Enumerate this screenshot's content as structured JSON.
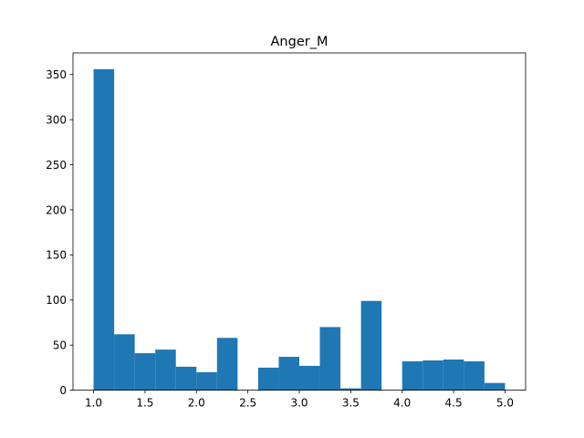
{
  "chart_data": {
    "type": "bar",
    "title": "Anger_M",
    "xlabel": "",
    "ylabel": "",
    "bin_edges": [
      1.0,
      1.2,
      1.4,
      1.6,
      1.8,
      2.0,
      2.2,
      2.4,
      2.6,
      2.8,
      3.0,
      3.2,
      3.4,
      3.6,
      3.8,
      4.0,
      4.2,
      4.4,
      4.6,
      4.8,
      5.0
    ],
    "values": [
      356,
      62,
      41,
      45,
      26,
      20,
      58,
      0,
      25,
      37,
      27,
      70,
      2,
      99,
      0,
      32,
      33,
      34,
      32,
      8
    ],
    "xlim": [
      0.8,
      5.2
    ],
    "ylim": [
      0,
      374
    ],
    "xticks": [
      1.0,
      1.5,
      2.0,
      2.5,
      3.0,
      3.5,
      4.0,
      4.5,
      5.0
    ],
    "xtick_labels": [
      "1.0",
      "1.5",
      "2.0",
      "2.5",
      "3.0",
      "3.5",
      "4.0",
      "4.5",
      "5.0"
    ],
    "yticks": [
      0,
      50,
      100,
      150,
      200,
      250,
      300,
      350
    ],
    "ytick_labels": [
      "0",
      "50",
      "100",
      "150",
      "200",
      "250",
      "300",
      "350"
    ],
    "bar_color": "#1f77b4",
    "grid": false,
    "legend": "none"
  }
}
